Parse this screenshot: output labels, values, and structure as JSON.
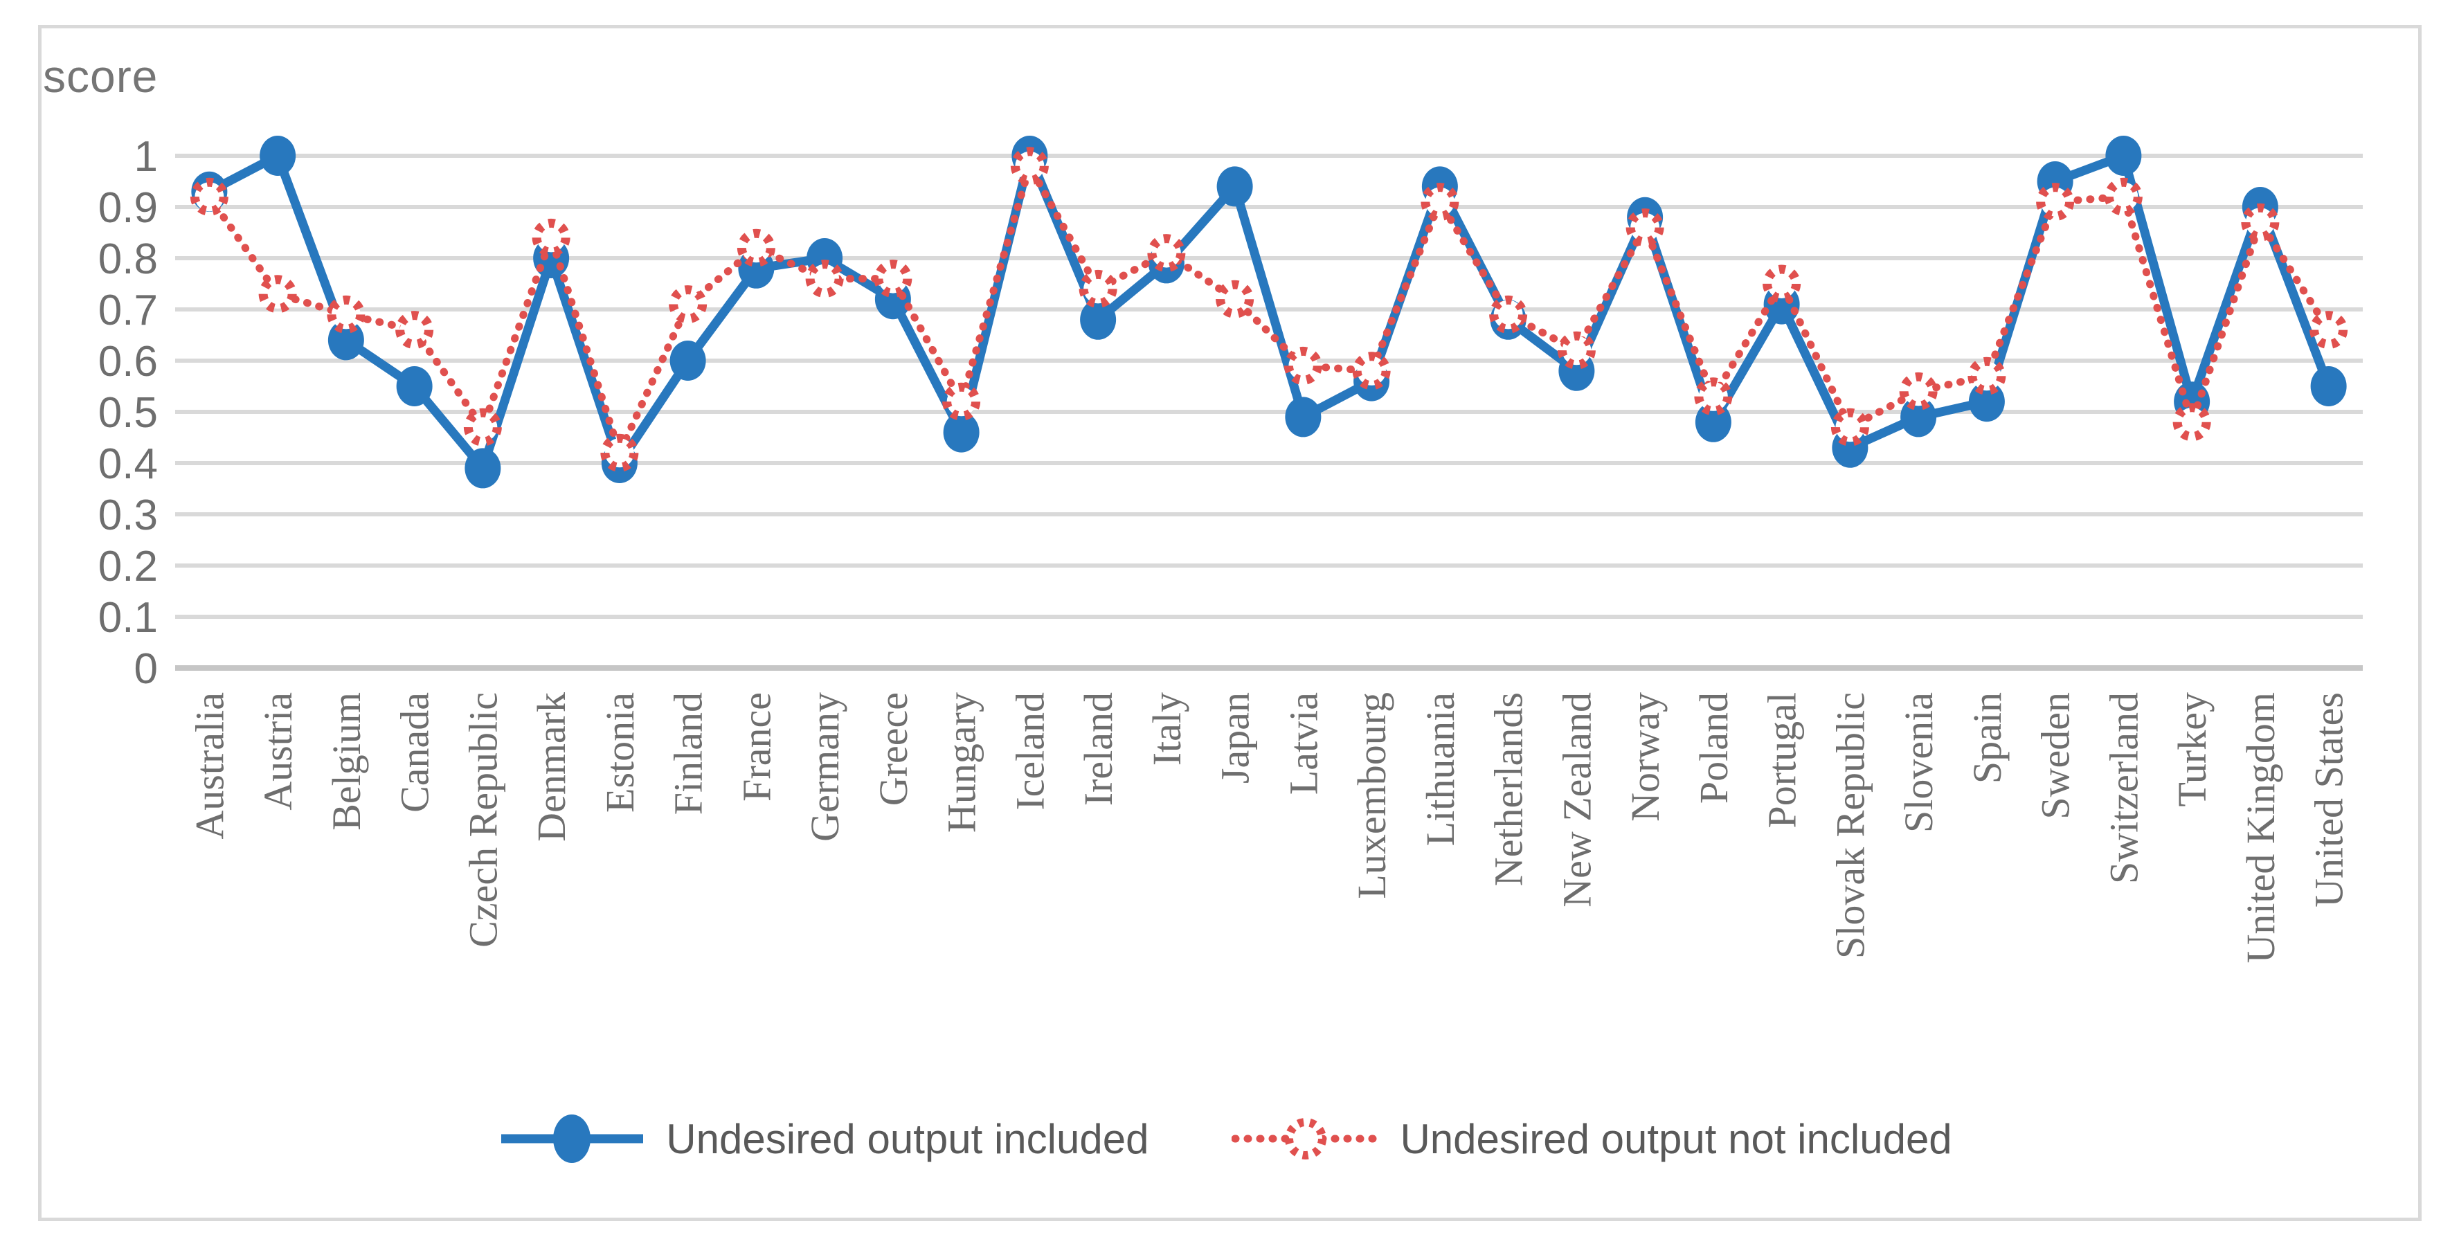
{
  "chart_data": {
    "type": "line",
    "title": "",
    "xlabel": "",
    "ylabel": "score",
    "ylim": [
      0,
      1
    ],
    "ytick_step": 0.1,
    "ytick_labels": [
      "0",
      "0.1",
      "0.2",
      "0.3",
      "0.4",
      "0.5",
      "0.6",
      "0.7",
      "0.8",
      "0.9",
      "1"
    ],
    "grid": "horizontal",
    "legend_position": "bottom-center",
    "categories": [
      "Australia",
      "Austria",
      "Belgium",
      "Canada",
      "Czech Republic",
      "Denmark",
      "Estonia",
      "Finland",
      "France",
      "Germany",
      "Greece",
      "Hungary",
      "Iceland",
      "Ireland",
      "Italy",
      "Japan",
      "Latvia",
      "Luxembourg",
      "Lithuania",
      "Netherlands",
      "New Zealand",
      "Norway",
      "Poland",
      "Portugal",
      "Slovak Republic",
      "Slovenia",
      "Spain",
      "Sweden",
      "Switzerland",
      "Turkey",
      "United Kingdom",
      "United States"
    ],
    "series": [
      {
        "name": "Undesired output included",
        "line_style": "solid",
        "marker": "filled-circle",
        "color": "#2878BE",
        "values": [
          0.93,
          1.0,
          0.64,
          0.55,
          0.39,
          0.8,
          0.4,
          0.6,
          0.78,
          0.8,
          0.72,
          0.46,
          1.0,
          0.68,
          0.79,
          0.94,
          0.49,
          0.56,
          0.94,
          0.68,
          0.58,
          0.88,
          0.48,
          0.71,
          0.43,
          0.49,
          0.52,
          0.95,
          1.0,
          0.52,
          0.9,
          0.55
        ]
      },
      {
        "name": "Undesired output not included",
        "line_style": "dotted",
        "marker": "open-circle",
        "color": "#E0504E",
        "values": [
          0.92,
          0.73,
          0.69,
          0.66,
          0.47,
          0.84,
          0.42,
          0.71,
          0.82,
          0.76,
          0.76,
          0.52,
          0.98,
          0.74,
          0.81,
          0.72,
          0.59,
          0.58,
          0.91,
          0.69,
          0.62,
          0.86,
          0.53,
          0.75,
          0.47,
          0.54,
          0.57,
          0.91,
          0.92,
          0.48,
          0.87,
          0.66
        ]
      }
    ],
    "axis_text_color": "#6E6E6E",
    "gridline_color": "#D9D9D9",
    "axis_line_color": "#C6C6C6",
    "border_color": "#D9D9D9"
  }
}
